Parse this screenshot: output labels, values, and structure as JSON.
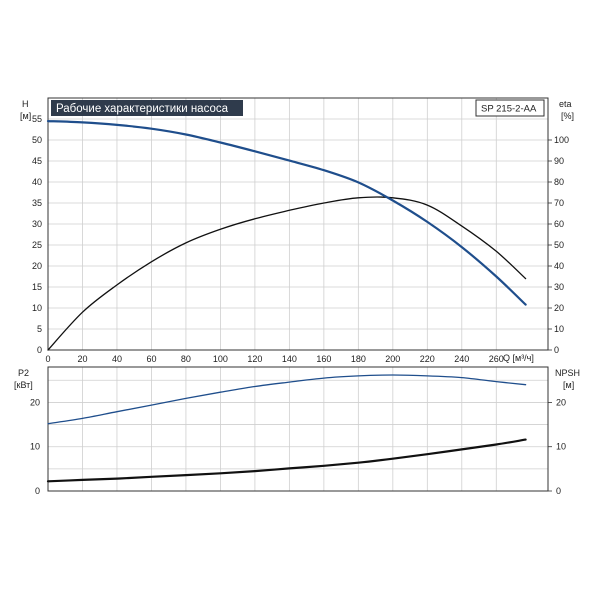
{
  "chart_data": [
    {
      "type": "line",
      "title": "Рабочие характеристики насоса",
      "model": "SP 215-2-AA",
      "xlabel": "Q [м³/ч]",
      "xlim": [
        0,
        290
      ],
      "xticks": [
        "0",
        "20",
        "40",
        "60",
        "80",
        "100",
        "120",
        "140",
        "160",
        "180",
        "200",
        "220",
        "240",
        "260"
      ],
      "y_left": {
        "label": "H",
        "unit": "[м]",
        "lim": [
          0,
          60
        ],
        "ticks": [
          "0",
          "5",
          "10",
          "15",
          "20",
          "25",
          "30",
          "35",
          "40",
          "45",
          "50",
          "55"
        ]
      },
      "y_right": {
        "label": "eta",
        "unit": "[%]",
        "lim": [
          0,
          120
        ],
        "ticks": [
          "0",
          "10",
          "20",
          "30",
          "40",
          "50",
          "60",
          "70",
          "80",
          "90",
          "100"
        ]
      },
      "grid": true,
      "series": [
        {
          "axis": "left",
          "color": "#1f4e8c",
          "x": [
            0,
            20,
            40,
            60,
            80,
            100,
            120,
            140,
            160,
            180,
            200,
            220,
            240,
            260,
            277
          ],
          "y": [
            54.5,
            54.2,
            53.6,
            52.7,
            51.3,
            49.4,
            47.3,
            45.1,
            42.8,
            39.9,
            35.6,
            30.5,
            24.5,
            17.5,
            10.8
          ]
        },
        {
          "axis": "right",
          "color": "#111111",
          "x": [
            0,
            20,
            40,
            60,
            80,
            100,
            120,
            140,
            160,
            180,
            200,
            220,
            240,
            260,
            277
          ],
          "y": [
            0,
            18,
            31,
            42,
            51,
            57.5,
            62.5,
            66.5,
            70,
            72.5,
            72.5,
            69,
            59,
            47,
            34
          ]
        }
      ]
    },
    {
      "type": "line",
      "xlim": [
        0,
        290
      ],
      "y_left": {
        "label": "P2",
        "unit": "[кВт]",
        "lim": [
          0,
          28
        ],
        "ticks": [
          "0",
          "10",
          "20"
        ]
      },
      "y_right": {
        "label": "NPSH",
        "unit": "[м]",
        "lim": [
          0,
          28
        ],
        "ticks": [
          "0",
          "10",
          "20"
        ]
      },
      "grid": true,
      "series": [
        {
          "axis": "left",
          "color": "#1f4e8c",
          "x": [
            0,
            20,
            40,
            60,
            80,
            100,
            120,
            140,
            160,
            180,
            200,
            220,
            240,
            260,
            277
          ],
          "y": [
            15.2,
            16.4,
            17.9,
            19.4,
            20.9,
            22.3,
            23.6,
            24.6,
            25.5,
            26.0,
            26.2,
            26.0,
            25.6,
            24.7,
            24.0
          ]
        },
        {
          "axis": "right",
          "color": "#111111",
          "x": [
            0,
            20,
            40,
            60,
            80,
            100,
            120,
            140,
            160,
            180,
            200,
            220,
            240,
            260,
            277
          ],
          "y": [
            2.2,
            2.5,
            2.8,
            3.2,
            3.6,
            4.0,
            4.5,
            5.1,
            5.7,
            6.4,
            7.3,
            8.3,
            9.4,
            10.5,
            11.6
          ]
        }
      ]
    }
  ]
}
